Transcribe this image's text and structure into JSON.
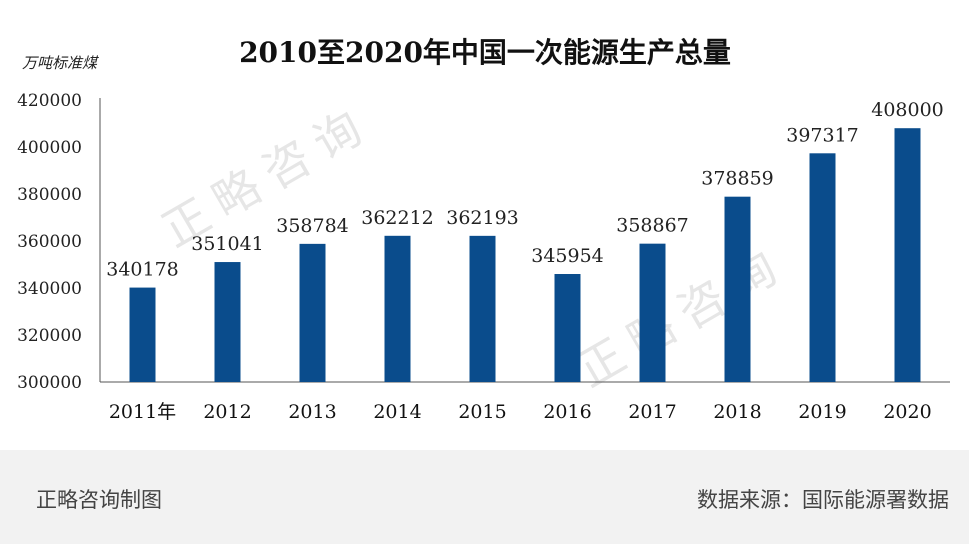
{
  "chart_data": {
    "type": "bar",
    "title": "2010至2020年中国一次能源生产总量",
    "unit_label": "万吨标准煤",
    "categories": [
      "2011年",
      "2012",
      "2013",
      "2014",
      "2015",
      "2016",
      "2017",
      "2018",
      "2019",
      "2020"
    ],
    "values": [
      340178,
      351041,
      358784,
      362212,
      362193,
      345954,
      358867,
      378859,
      397317,
      408000
    ],
    "ylim": [
      300000,
      420000
    ],
    "yticks": [
      "420000",
      "400000",
      "380000",
      "360000",
      "340000",
      "320000",
      "300000"
    ],
    "bar_color": "#0a4c8c",
    "grid": false,
    "legend": "none"
  },
  "watermark": "正略咨询",
  "footer": {
    "credit": "正略咨询制图",
    "source": "数据来源：国际能源署数据"
  }
}
